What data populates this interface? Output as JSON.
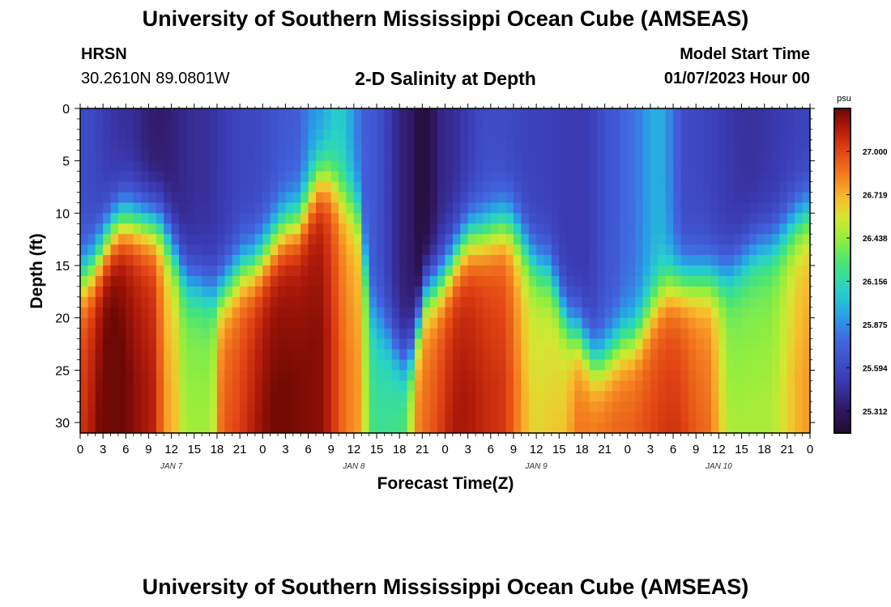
{
  "header": {
    "title": "University of Southern Mississippi Ocean Cube (AMSEAS)",
    "station": "HRSN",
    "coords": "30.2610N  89.0801W",
    "subtitle": "2-D Salinity at Depth",
    "start_label": "Model Start Time",
    "start_value": "01/07/2023 Hour 00"
  },
  "footer": {
    "title": "University of Southern Mississippi Ocean Cube (AMSEAS)"
  },
  "chart_data": {
    "type": "heatmap",
    "title": "2-D Salinity at Depth",
    "xlabel": "Forecast Time(Z)",
    "ylabel": "Depth (ft)",
    "x_range_hours": [
      0,
      96
    ],
    "ylim": [
      0,
      31
    ],
    "y_inverted": true,
    "x_ticks": [
      "0",
      "3",
      "6",
      "9",
      "12",
      "15",
      "18",
      "21",
      "0",
      "3",
      "6",
      "9",
      "12",
      "15",
      "18",
      "21",
      "0",
      "3",
      "6",
      "9",
      "12",
      "15",
      "18",
      "21",
      "0",
      "3",
      "6",
      "9",
      "12",
      "15",
      "18",
      "21",
      "0"
    ],
    "y_ticks": [
      {
        "value": 0,
        "label": "0"
      },
      {
        "value": 5,
        "label": "5"
      },
      {
        "value": 10,
        "label": "10"
      },
      {
        "value": 15,
        "label": "15"
      },
      {
        "value": 20,
        "label": "20"
      },
      {
        "value": 25,
        "label": "25"
      },
      {
        "value": 30,
        "label": "30"
      }
    ],
    "day_labels": [
      {
        "hour": 12,
        "label": "JAN 7"
      },
      {
        "hour": 36,
        "label": "JAN 8"
      },
      {
        "hour": 60,
        "label": "JAN 9"
      },
      {
        "hour": 84,
        "label": "JAN 10"
      }
    ],
    "colorbar": {
      "unit": "psu",
      "min": 25.17,
      "max": 27.28,
      "ticks": [
        "27.000",
        "26.719",
        "26.438",
        "26.156",
        "25.875",
        "25.594",
        "25.312"
      ],
      "tick_values": [
        27.0,
        26.719,
        26.438,
        26.156,
        25.875,
        25.594,
        25.312
      ]
    },
    "field": {
      "time_resolution_hours": 1,
      "depth_resolution_ft": 1,
      "halocline_depth_keyframes": [
        {
          "hour": 0,
          "depth": 16
        },
        {
          "hour": 6,
          "depth": 10.5
        },
        {
          "hour": 10,
          "depth": 11
        },
        {
          "hour": 15,
          "depth": 16.5
        },
        {
          "hour": 18,
          "depth": 17.5
        },
        {
          "hour": 22,
          "depth": 15
        },
        {
          "hour": 28,
          "depth": 11
        },
        {
          "hour": 32,
          "depth": 6.5
        },
        {
          "hour": 36,
          "depth": 9
        },
        {
          "hour": 39,
          "depth": 20
        },
        {
          "hour": 43,
          "depth": 24
        },
        {
          "hour": 46,
          "depth": 17
        },
        {
          "hour": 52,
          "depth": 12
        },
        {
          "hour": 56,
          "depth": 11
        },
        {
          "hour": 61,
          "depth": 15
        },
        {
          "hour": 65,
          "depth": 21
        },
        {
          "hour": 68,
          "depth": 24
        },
        {
          "hour": 72,
          "depth": 22
        },
        {
          "hour": 78,
          "depth": 16.5
        },
        {
          "hour": 84,
          "depth": 16
        },
        {
          "hour": 90,
          "depth": 13
        },
        {
          "hour": 96,
          "depth": 10
        }
      ],
      "bottom_salinity_keyframes": [
        {
          "hour": 0,
          "value": 26.95
        },
        {
          "hour": 4,
          "value": 27.22
        },
        {
          "hour": 9,
          "value": 27.05
        },
        {
          "hour": 12,
          "value": 26.6
        },
        {
          "hour": 14,
          "value": 26.35
        },
        {
          "hour": 17,
          "value": 26.35
        },
        {
          "hour": 19,
          "value": 26.85
        },
        {
          "hour": 26,
          "value": 27.15
        },
        {
          "hour": 31,
          "value": 27.12
        },
        {
          "hour": 36,
          "value": 26.7
        },
        {
          "hour": 39,
          "value": 26.12
        },
        {
          "hour": 42,
          "value": 26.18
        },
        {
          "hour": 45,
          "value": 26.8
        },
        {
          "hour": 50,
          "value": 27.05
        },
        {
          "hour": 55,
          "value": 26.95
        },
        {
          "hour": 60,
          "value": 26.5
        },
        {
          "hour": 63,
          "value": 26.55
        },
        {
          "hour": 66,
          "value": 26.8
        },
        {
          "hour": 71,
          "value": 26.85
        },
        {
          "hour": 78,
          "value": 26.95
        },
        {
          "hour": 82,
          "value": 26.8
        },
        {
          "hour": 86,
          "value": 26.35
        },
        {
          "hour": 90,
          "value": 26.35
        },
        {
          "hour": 96,
          "value": 26.65
        }
      ],
      "surface_salinity_keyframes": [
        {
          "hour": 0,
          "value": 25.62
        },
        {
          "hour": 6,
          "value": 25.45
        },
        {
          "hour": 10,
          "value": 25.34
        },
        {
          "hour": 16,
          "value": 25.45
        },
        {
          "hour": 22,
          "value": 25.58
        },
        {
          "hour": 28,
          "value": 25.7
        },
        {
          "hour": 31,
          "value": 25.9
        },
        {
          "hour": 34,
          "value": 26.08
        },
        {
          "hour": 38,
          "value": 25.7
        },
        {
          "hour": 43,
          "value": 25.36
        },
        {
          "hour": 45,
          "value": 25.2
        },
        {
          "hour": 48,
          "value": 25.42
        },
        {
          "hour": 54,
          "value": 25.62
        },
        {
          "hour": 60,
          "value": 25.55
        },
        {
          "hour": 66,
          "value": 25.5
        },
        {
          "hour": 70,
          "value": 25.68
        },
        {
          "hour": 72,
          "value": 25.78
        },
        {
          "hour": 76,
          "value": 25.98
        },
        {
          "hour": 80,
          "value": 25.6
        },
        {
          "hour": 88,
          "value": 25.46
        },
        {
          "hour": 96,
          "value": 25.56
        }
      ]
    }
  }
}
